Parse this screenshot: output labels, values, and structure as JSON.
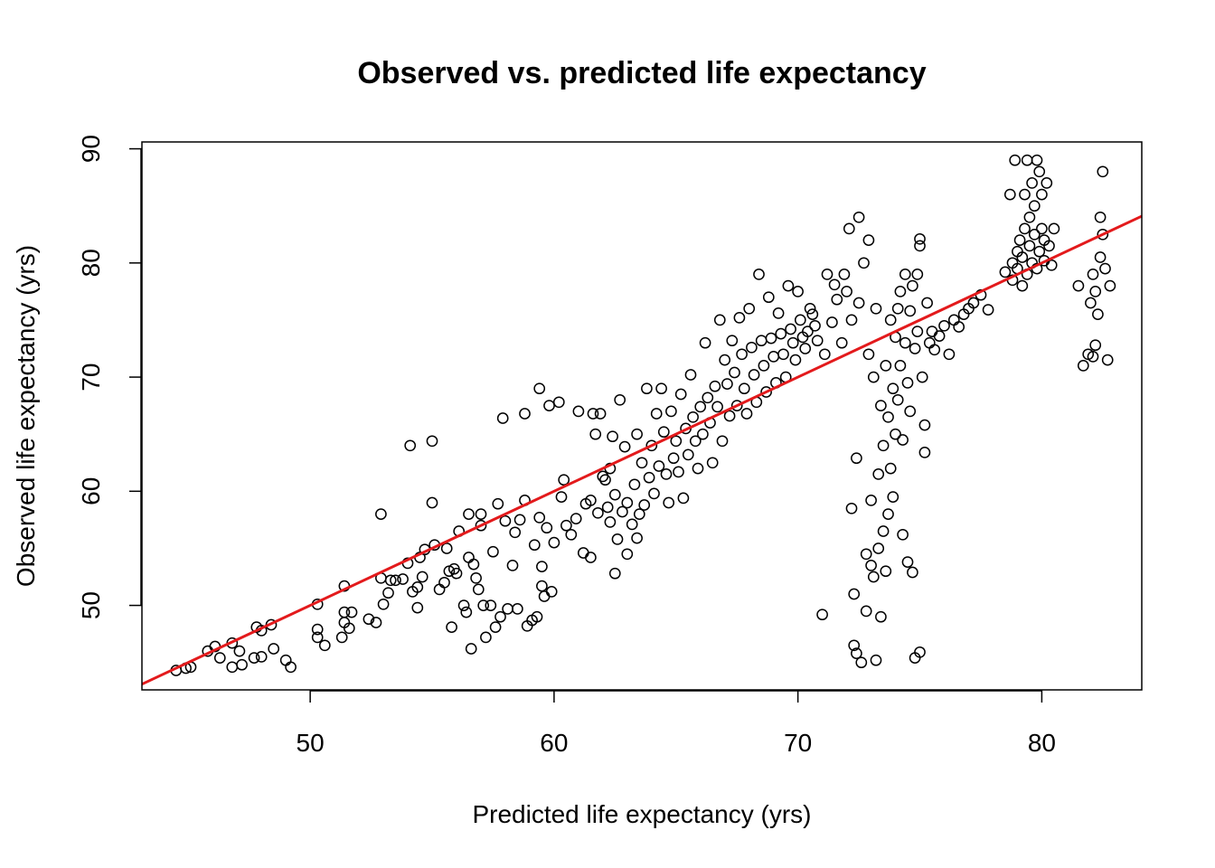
{
  "chart_data": {
    "type": "scatter",
    "title": "Observed vs. predicted life expectancy",
    "xlabel": "Predicted life expectancy (yrs)",
    "ylabel": "Observed life expectancy (yrs)",
    "xlim": [
      43.1,
      84.1
    ],
    "ylim": [
      42.6,
      90.6
    ],
    "x_ticks": [
      50,
      60,
      70,
      80
    ],
    "y_ticks": [
      50,
      60,
      70,
      80,
      90
    ],
    "grid": false,
    "legend": "none",
    "point_color": "#000000",
    "fit_line": {
      "color": "#e31a1c",
      "x": [
        43.1,
        84.1
      ],
      "y": [
        43.1,
        84.1
      ]
    },
    "points": [
      [
        44.5,
        44.3
      ],
      [
        44.9,
        44.5
      ],
      [
        45.1,
        44.6
      ],
      [
        45.8,
        46.0
      ],
      [
        46.1,
        46.4
      ],
      [
        46.3,
        45.4
      ],
      [
        46.8,
        46.7
      ],
      [
        46.8,
        44.6
      ],
      [
        47.1,
        46.0
      ],
      [
        47.2,
        44.8
      ],
      [
        47.7,
        45.4
      ],
      [
        47.8,
        48.1
      ],
      [
        48.0,
        45.5
      ],
      [
        48.0,
        47.8
      ],
      [
        48.4,
        48.3
      ],
      [
        48.5,
        46.2
      ],
      [
        49.0,
        45.2
      ],
      [
        49.2,
        44.6
      ],
      [
        50.3,
        50.1
      ],
      [
        50.3,
        47.9
      ],
      [
        50.3,
        47.2
      ],
      [
        50.6,
        46.5
      ],
      [
        51.3,
        47.2
      ],
      [
        51.4,
        51.7
      ],
      [
        51.4,
        49.4
      ],
      [
        51.4,
        48.5
      ],
      [
        51.6,
        48.0
      ],
      [
        51.7,
        49.4
      ],
      [
        52.4,
        48.8
      ],
      [
        52.7,
        48.5
      ],
      [
        52.9,
        58.0
      ],
      [
        52.9,
        52.4
      ],
      [
        53.0,
        50.1
      ],
      [
        53.2,
        51.1
      ],
      [
        53.3,
        52.2
      ],
      [
        53.5,
        52.2
      ],
      [
        53.8,
        52.3
      ],
      [
        54.0,
        53.7
      ],
      [
        54.1,
        64.0
      ],
      [
        54.2,
        51.2
      ],
      [
        54.4,
        49.8
      ],
      [
        54.4,
        51.6
      ],
      [
        54.5,
        54.2
      ],
      [
        54.6,
        52.5
      ],
      [
        54.7,
        54.9
      ],
      [
        55.0,
        64.4
      ],
      [
        55.0,
        59.0
      ],
      [
        55.1,
        55.3
      ],
      [
        55.3,
        51.4
      ],
      [
        55.5,
        52.0
      ],
      [
        55.6,
        55.0
      ],
      [
        55.7,
        53.0
      ],
      [
        55.8,
        48.1
      ],
      [
        55.9,
        53.2
      ],
      [
        56.0,
        52.8
      ],
      [
        56.1,
        56.5
      ],
      [
        56.3,
        50.0
      ],
      [
        56.4,
        49.4
      ],
      [
        56.5,
        58.0
      ],
      [
        56.5,
        54.2
      ],
      [
        56.6,
        46.2
      ],
      [
        56.7,
        53.6
      ],
      [
        56.8,
        52.4
      ],
      [
        56.9,
        51.4
      ],
      [
        57.0,
        58.0
      ],
      [
        57.0,
        57.0
      ],
      [
        57.1,
        50.0
      ],
      [
        57.2,
        47.2
      ],
      [
        57.4,
        50.0
      ],
      [
        57.5,
        54.7
      ],
      [
        57.6,
        48.1
      ],
      [
        57.7,
        58.9
      ],
      [
        57.8,
        49.0
      ],
      [
        57.9,
        66.4
      ],
      [
        58.0,
        57.4
      ],
      [
        58.1,
        49.7
      ],
      [
        58.3,
        53.5
      ],
      [
        58.4,
        56.4
      ],
      [
        58.5,
        49.7
      ],
      [
        58.6,
        57.5
      ],
      [
        58.8,
        66.8
      ],
      [
        58.8,
        59.2
      ],
      [
        58.9,
        48.2
      ],
      [
        59.1,
        48.7
      ],
      [
        59.2,
        55.3
      ],
      [
        59.3,
        49.0
      ],
      [
        59.4,
        69.0
      ],
      [
        59.4,
        57.7
      ],
      [
        59.5,
        53.4
      ],
      [
        59.5,
        51.7
      ],
      [
        59.6,
        50.8
      ],
      [
        59.7,
        56.8
      ],
      [
        59.8,
        67.5
      ],
      [
        59.9,
        51.2
      ],
      [
        60.0,
        55.5
      ],
      [
        60.2,
        67.8
      ],
      [
        60.3,
        59.5
      ],
      [
        60.4,
        61.0
      ],
      [
        60.5,
        57.0
      ],
      [
        60.7,
        56.2
      ],
      [
        60.9,
        57.6
      ],
      [
        61.0,
        67.0
      ],
      [
        61.2,
        54.6
      ],
      [
        61.3,
        58.9
      ],
      [
        61.5,
        59.2
      ],
      [
        61.5,
        54.2
      ],
      [
        61.6,
        66.8
      ],
      [
        61.7,
        65.0
      ],
      [
        61.8,
        58.1
      ],
      [
        61.9,
        66.8
      ],
      [
        62.0,
        61.3
      ],
      [
        62.1,
        61.0
      ],
      [
        62.2,
        58.6
      ],
      [
        62.3,
        62.0
      ],
      [
        62.3,
        57.3
      ],
      [
        62.4,
        64.8
      ],
      [
        62.5,
        52.8
      ],
      [
        62.5,
        59.7
      ],
      [
        62.6,
        55.8
      ],
      [
        62.7,
        68.0
      ],
      [
        62.8,
        58.2
      ],
      [
        62.9,
        63.9
      ],
      [
        63.0,
        54.5
      ],
      [
        63.0,
        59.0
      ],
      [
        63.2,
        57.1
      ],
      [
        63.3,
        60.6
      ],
      [
        63.4,
        65.0
      ],
      [
        63.4,
        55.9
      ],
      [
        63.5,
        58.0
      ],
      [
        63.6,
        62.5
      ],
      [
        63.7,
        58.8
      ],
      [
        63.8,
        69.0
      ],
      [
        63.9,
        61.2
      ],
      [
        64.0,
        64.0
      ],
      [
        64.1,
        59.8
      ],
      [
        64.2,
        66.8
      ],
      [
        64.3,
        62.2
      ],
      [
        64.4,
        69.0
      ],
      [
        64.5,
        65.2
      ],
      [
        64.6,
        61.5
      ],
      [
        64.7,
        59.0
      ],
      [
        64.8,
        67.0
      ],
      [
        64.9,
        62.9
      ],
      [
        65.0,
        64.4
      ],
      [
        65.1,
        61.7
      ],
      [
        65.2,
        68.5
      ],
      [
        65.3,
        59.4
      ],
      [
        65.4,
        65.5
      ],
      [
        65.5,
        63.2
      ],
      [
        65.6,
        70.2
      ],
      [
        65.7,
        66.5
      ],
      [
        65.8,
        64.4
      ],
      [
        65.9,
        62.0
      ],
      [
        66.0,
        67.4
      ],
      [
        66.1,
        65.0
      ],
      [
        66.2,
        73.0
      ],
      [
        66.3,
        68.2
      ],
      [
        66.4,
        66.0
      ],
      [
        66.5,
        62.5
      ],
      [
        66.6,
        69.2
      ],
      [
        66.7,
        67.4
      ],
      [
        66.8,
        75.0
      ],
      [
        66.9,
        64.4
      ],
      [
        67.0,
        71.5
      ],
      [
        67.1,
        69.4
      ],
      [
        67.2,
        66.6
      ],
      [
        67.3,
        73.2
      ],
      [
        67.4,
        70.4
      ],
      [
        67.5,
        67.5
      ],
      [
        67.6,
        75.2
      ],
      [
        67.7,
        72.0
      ],
      [
        67.8,
        69.0
      ],
      [
        67.9,
        66.8
      ],
      [
        68.0,
        76.0
      ],
      [
        68.1,
        72.6
      ],
      [
        68.2,
        70.2
      ],
      [
        68.3,
        67.8
      ],
      [
        68.4,
        79.0
      ],
      [
        68.5,
        73.2
      ],
      [
        68.6,
        71.0
      ],
      [
        68.7,
        68.7
      ],
      [
        68.8,
        77.0
      ],
      [
        68.9,
        73.4
      ],
      [
        69.0,
        71.8
      ],
      [
        69.1,
        69.5
      ],
      [
        69.2,
        75.6
      ],
      [
        69.3,
        73.8
      ],
      [
        69.4,
        72.0
      ],
      [
        69.5,
        70.0
      ],
      [
        69.6,
        78.0
      ],
      [
        69.7,
        74.2
      ],
      [
        69.8,
        73.0
      ],
      [
        69.9,
        71.5
      ],
      [
        70.0,
        77.5
      ],
      [
        70.1,
        75.0
      ],
      [
        70.2,
        73.5
      ],
      [
        70.3,
        72.5
      ],
      [
        70.4,
        74.0
      ],
      [
        70.5,
        76.0
      ],
      [
        70.6,
        75.5
      ],
      [
        70.7,
        74.5
      ],
      [
        70.8,
        73.2
      ],
      [
        71.0,
        49.2
      ],
      [
        71.1,
        72.0
      ],
      [
        71.2,
        79.0
      ],
      [
        71.4,
        74.8
      ],
      [
        71.5,
        78.1
      ],
      [
        71.6,
        76.8
      ],
      [
        71.8,
        73.0
      ],
      [
        71.9,
        79.0
      ],
      [
        72.0,
        77.5
      ],
      [
        72.1,
        83.0
      ],
      [
        72.2,
        75.0
      ],
      [
        72.2,
        58.5
      ],
      [
        72.3,
        51.0
      ],
      [
        72.3,
        46.5
      ],
      [
        72.4,
        45.8
      ],
      [
        72.4,
        62.9
      ],
      [
        72.5,
        84.0
      ],
      [
        72.5,
        76.5
      ],
      [
        72.6,
        45.0
      ],
      [
        72.7,
        80.0
      ],
      [
        72.8,
        54.5
      ],
      [
        72.8,
        49.5
      ],
      [
        72.9,
        82.0
      ],
      [
        72.9,
        72.0
      ],
      [
        73.0,
        59.2
      ],
      [
        73.0,
        53.5
      ],
      [
        73.1,
        70.0
      ],
      [
        73.1,
        52.5
      ],
      [
        73.2,
        76.0
      ],
      [
        73.2,
        45.2
      ],
      [
        73.3,
        61.5
      ],
      [
        73.3,
        55.0
      ],
      [
        73.4,
        67.5
      ],
      [
        73.4,
        49.0
      ],
      [
        73.5,
        64.0
      ],
      [
        73.5,
        56.5
      ],
      [
        73.6,
        71.0
      ],
      [
        73.6,
        53.0
      ],
      [
        73.7,
        66.5
      ],
      [
        73.7,
        58.0
      ],
      [
        73.8,
        75.0
      ],
      [
        73.8,
        62.0
      ],
      [
        73.9,
        69.0
      ],
      [
        73.9,
        59.5
      ],
      [
        74.0,
        73.5
      ],
      [
        74.0,
        65.0
      ],
      [
        74.1,
        76.0
      ],
      [
        74.1,
        68.0
      ],
      [
        74.2,
        77.5
      ],
      [
        74.2,
        71.0
      ],
      [
        74.3,
        64.5
      ],
      [
        74.3,
        56.2
      ],
      [
        74.4,
        79.0
      ],
      [
        74.4,
        73.0
      ],
      [
        74.5,
        53.8
      ],
      [
        74.5,
        69.5
      ],
      [
        74.6,
        75.8
      ],
      [
        74.6,
        67.0
      ],
      [
        74.7,
        52.9
      ],
      [
        74.7,
        78.0
      ],
      [
        74.8,
        72.5
      ],
      [
        74.8,
        45.4
      ],
      [
        74.9,
        79.0
      ],
      [
        74.9,
        74.0
      ],
      [
        75.0,
        82.1
      ],
      [
        75.0,
        81.5
      ],
      [
        75.0,
        45.9
      ],
      [
        75.1,
        70.0
      ],
      [
        75.2,
        65.8
      ],
      [
        75.2,
        63.4
      ],
      [
        75.3,
        76.5
      ],
      [
        75.4,
        73.0
      ],
      [
        75.5,
        74.0
      ],
      [
        75.6,
        72.4
      ],
      [
        75.8,
        73.6
      ],
      [
        76.0,
        74.5
      ],
      [
        76.2,
        72.0
      ],
      [
        76.4,
        75.0
      ],
      [
        76.6,
        74.4
      ],
      [
        76.8,
        75.5
      ],
      [
        77.0,
        76.0
      ],
      [
        77.2,
        76.5
      ],
      [
        77.5,
        77.2
      ],
      [
        77.8,
        75.9
      ],
      [
        78.5,
        79.2
      ],
      [
        78.7,
        86.0
      ],
      [
        78.8,
        78.5
      ],
      [
        78.8,
        80.0
      ],
      [
        78.9,
        89.0
      ],
      [
        79.0,
        81.0
      ],
      [
        79.0,
        79.5
      ],
      [
        79.1,
        82.0
      ],
      [
        79.2,
        78.0
      ],
      [
        79.2,
        80.5
      ],
      [
        79.3,
        83.0
      ],
      [
        79.3,
        86.0
      ],
      [
        79.4,
        79.0
      ],
      [
        79.4,
        89.0
      ],
      [
        79.5,
        81.5
      ],
      [
        79.5,
        84.0
      ],
      [
        79.6,
        87.0
      ],
      [
        79.6,
        80.0
      ],
      [
        79.7,
        85.0
      ],
      [
        79.7,
        82.5
      ],
      [
        79.8,
        89.0
      ],
      [
        79.8,
        79.5
      ],
      [
        79.9,
        88.0
      ],
      [
        79.9,
        81.0
      ],
      [
        80.0,
        86.0
      ],
      [
        80.0,
        83.0
      ],
      [
        80.1,
        80.2
      ],
      [
        80.1,
        82.0
      ],
      [
        80.2,
        87.0
      ],
      [
        80.3,
        81.5
      ],
      [
        80.4,
        79.8
      ],
      [
        80.5,
        83.0
      ],
      [
        81.5,
        78.0
      ],
      [
        81.7,
        71.0
      ],
      [
        81.9,
        72.0
      ],
      [
        82.0,
        76.5
      ],
      [
        82.1,
        79.0
      ],
      [
        82.1,
        71.8
      ],
      [
        82.2,
        77.5
      ],
      [
        82.2,
        72.8
      ],
      [
        82.3,
        75.5
      ],
      [
        82.4,
        80.5
      ],
      [
        82.4,
        84.0
      ],
      [
        82.5,
        82.5
      ],
      [
        82.5,
        88.0
      ],
      [
        82.6,
        79.5
      ],
      [
        82.7,
        71.5
      ],
      [
        82.8,
        78.0
      ]
    ]
  }
}
